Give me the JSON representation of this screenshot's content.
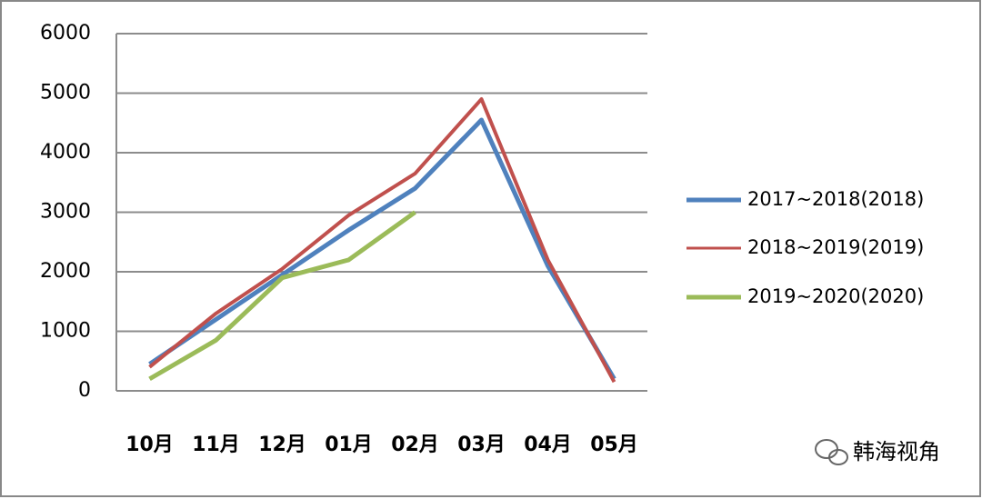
{
  "chart_data": {
    "type": "line",
    "categories": [
      "10月",
      "11月",
      "12月",
      "01月",
      "02月",
      "03月",
      "04月",
      "05月"
    ],
    "series": [
      {
        "name": "2017~2018(2018)",
        "color": "#4f81bd",
        "values": [
          450,
          1200,
          1950,
          2700,
          3400,
          4550,
          2100,
          200
        ]
      },
      {
        "name": "2018~2019(2019)",
        "color": "#c0504d",
        "values": [
          400,
          1300,
          2050,
          2950,
          3650,
          4900,
          2200,
          150
        ]
      },
      {
        "name": "2019~2020(2020)",
        "color": "#9bbb59",
        "values": [
          200,
          850,
          1900,
          2200,
          3000,
          null,
          null,
          null
        ]
      }
    ],
    "ylim": [
      0,
      6000
    ],
    "yticks": [
      0,
      1000,
      2000,
      3000,
      4000,
      5000,
      6000
    ],
    "grid": true,
    "legend": "right",
    "watermark": "韩海视角"
  }
}
